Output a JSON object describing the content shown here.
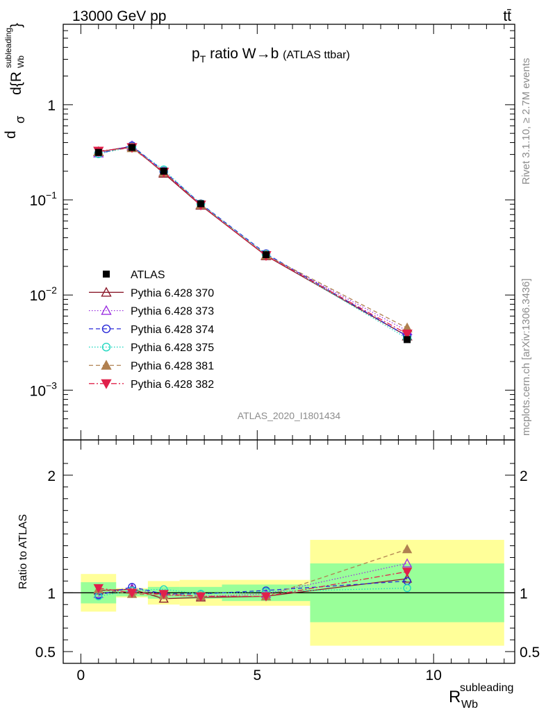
{
  "header": {
    "energy_label": "13000 GeV pp",
    "process_label": "tt̄",
    "plot_title_main": "ratio W→b",
    "plot_title_sub": "(ATLAS ttbar)",
    "analysis_id": "ATLAS_2020_I1801434",
    "side_rivet": "Rivet 3.1.10, ≥ 2.7M events",
    "side_site": "mcplots.cern.ch [arXiv:1306.3436]"
  },
  "axes": {
    "main_ylabel": "dσ/d{R_Wb^subleading} / σ",
    "ratio_ylabel": "Ratio to ATLAS",
    "xlabel_main": "R",
    "xlabel_sup": "subleading",
    "xlabel_sub": "Wb",
    "x_ticks": [
      "0",
      "5",
      "10"
    ],
    "main_yticks": [
      "1",
      "10",
      "10",
      "10"
    ],
    "main_yticks_exp": [
      "",
      "−1",
      "−2",
      "−3"
    ],
    "ratio_yticks": [
      "2",
      "1",
      "0.5"
    ]
  },
  "legend": [
    {
      "label": "ATLAS",
      "color": "#000000",
      "marker": "square",
      "dash": ""
    },
    {
      "label": "Pythia 6.428 370",
      "color": "#8b1a2b",
      "marker": "tri-open",
      "dash": ""
    },
    {
      "label": "Pythia 6.428 373",
      "color": "#9b30e0",
      "marker": "tri-open",
      "dash": "1.5,2.5"
    },
    {
      "label": "Pythia 6.428 374",
      "color": "#2828d8",
      "marker": "circle-open",
      "dash": "6,4"
    },
    {
      "label": "Pythia 6.428 375",
      "color": "#20d8c0",
      "marker": "circle-open",
      "dash": "1.5,2.5"
    },
    {
      "label": "Pythia 6.428 381",
      "color": "#b08050",
      "marker": "tri-filled",
      "dash": "6,4"
    },
    {
      "label": "Pythia 6.428 382",
      "color": "#e0204a",
      "marker": "tri-down-filled",
      "dash": "8,3,2,3"
    }
  ],
  "chart_data": {
    "type": "line",
    "x_scale": "linear",
    "y_scale": "log",
    "xlim": [
      -0.5,
      12.3
    ],
    "ylim_main": [
      0.0003,
      7
    ],
    "ylim_ratio": [
      0.4,
      2.3
    ],
    "bins": [
      [
        0,
        1
      ],
      [
        1,
        1.9
      ],
      [
        1.9,
        2.8
      ],
      [
        2.8,
        4
      ],
      [
        4,
        6.5
      ],
      [
        6.5,
        12
      ]
    ],
    "x": [
      0.5,
      1.45,
      2.35,
      3.4,
      5.25,
      9.25
    ],
    "data": {
      "name": "ATLAS",
      "values": [
        0.315,
        0.355,
        0.2,
        0.091,
        0.0265,
        0.0034
      ],
      "stat_band": [
        0.09,
        0.03,
        0.05,
        0.05,
        0.07,
        0.25
      ],
      "total_band": [
        0.16,
        0.04,
        0.1,
        0.11,
        0.11,
        0.45
      ]
    },
    "series": [
      {
        "name": "Pythia 6.428 370",
        "values": [
          0.32,
          0.365,
          0.19,
          0.0875,
          0.0258,
          0.0037
        ],
        "ratio": [
          1.02,
          1.03,
          0.95,
          0.96,
          0.97,
          1.12
        ]
      },
      {
        "name": "Pythia 6.428 373",
        "values": [
          0.31,
          0.37,
          0.196,
          0.089,
          0.0262,
          0.0042
        ],
        "ratio": [
          0.99,
          1.04,
          0.98,
          0.97,
          0.99,
          1.25
        ]
      },
      {
        "name": "Pythia 6.428 374",
        "values": [
          0.306,
          0.37,
          0.2,
          0.091,
          0.0272,
          0.0037
        ],
        "ratio": [
          0.98,
          1.05,
          0.99,
          0.99,
          1.02,
          1.1
        ]
      },
      {
        "name": "Pythia 6.428 375",
        "values": [
          0.305,
          0.36,
          0.207,
          0.0905,
          0.0268,
          0.0035
        ],
        "ratio": [
          0.97,
          1.02,
          1.03,
          0.99,
          1.01,
          1.04
        ]
      },
      {
        "name": "Pythia 6.428 381",
        "values": [
          0.322,
          0.352,
          0.195,
          0.0888,
          0.0262,
          0.0045
        ],
        "ratio": [
          1.03,
          0.99,
          0.98,
          0.97,
          0.97,
          1.37
        ]
      },
      {
        "name": "Pythia 6.428 382",
        "values": [
          0.326,
          0.355,
          0.196,
          0.0884,
          0.026,
          0.0039
        ],
        "ratio": [
          1.04,
          1.0,
          0.99,
          0.97,
          0.97,
          1.18
        ]
      }
    ]
  }
}
